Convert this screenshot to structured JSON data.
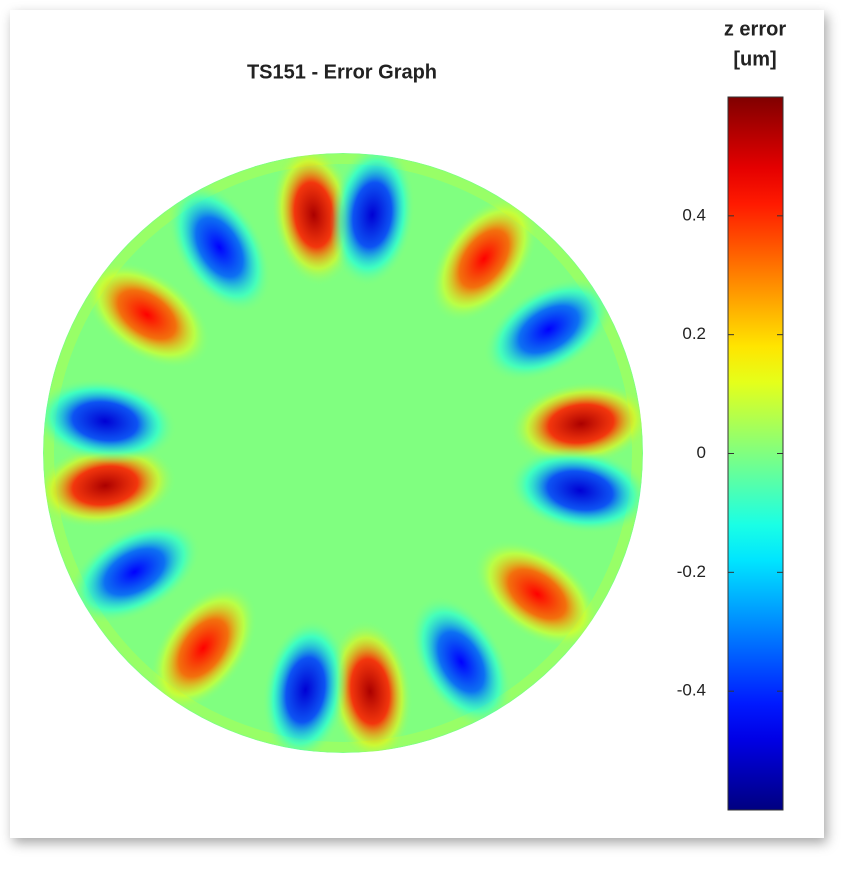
{
  "chart_data": {
    "type": "polar_field",
    "title": "TS151 - Error Graph",
    "colorbar_label": [
      "z error",
      "[um]"
    ],
    "colormap": "jet",
    "x": [
      97,
      83,
      54,
      31,
      7,
      351,
      324,
      299.5,
      276.5,
      261,
      234.4,
      209.7,
      187.8,
      172.4,
      144.8,
      121
    ],
    "values": [
      0.55,
      -0.5,
      0.45,
      -0.45,
      0.55,
      -0.5,
      0.45,
      -0.45,
      0.55,
      -0.5,
      0.45,
      -0.45,
      0.55,
      -0.5,
      0.45,
      -0.45
    ],
    "clim": [
      -0.6,
      0.6
    ],
    "cticks": [
      -0.4,
      -0.2,
      0,
      0.2,
      0.4
    ]
  }
}
